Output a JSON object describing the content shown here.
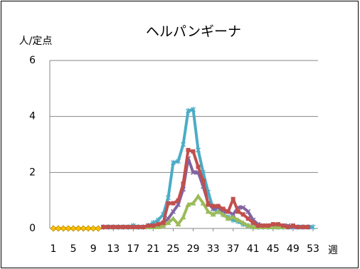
{
  "chart_data": {
    "type": "line",
    "title": "ヘルパンギーナ",
    "y_label": "人/定点",
    "x_label": "週",
    "x": [
      1,
      2,
      3,
      4,
      5,
      6,
      7,
      8,
      9,
      10,
      11,
      12,
      13,
      14,
      15,
      16,
      17,
      18,
      19,
      20,
      21,
      22,
      23,
      24,
      25,
      26,
      27,
      28,
      29,
      30,
      31,
      32,
      33,
      34,
      35,
      36,
      37,
      38,
      39,
      40,
      41,
      42,
      43,
      44,
      45,
      46,
      47,
      48,
      49,
      50,
      51,
      52,
      53
    ],
    "xlim": [
      1,
      53
    ],
    "xticks": [
      1,
      5,
      9,
      13,
      17,
      21,
      25,
      29,
      33,
      37,
      41,
      45,
      49,
      53
    ],
    "ylim": [
      0,
      6
    ],
    "yticks": [
      0,
      2,
      4,
      6
    ],
    "grid": true,
    "series": [
      {
        "color": "#4bacc6",
        "marker": "star",
        "values": [
          null,
          null,
          null,
          null,
          null,
          null,
          null,
          null,
          null,
          null,
          0.05,
          0.05,
          0.05,
          0.05,
          0.05,
          0.05,
          0.1,
          0.05,
          0.05,
          0.1,
          0.2,
          0.3,
          0.5,
          1.1,
          2.35,
          2.4,
          3.0,
          4.2,
          4.25,
          2.8,
          2.0,
          1.3,
          0.7,
          0.6,
          0.5,
          0.4,
          0.3,
          0.25,
          0.15,
          0.1,
          0.05,
          0.05,
          0.05,
          0.05,
          0.05,
          0.05,
          0.05,
          0.05,
          0.05,
          0.05,
          0.05,
          0.05,
          0.05
        ]
      },
      {
        "color": "#8064a2",
        "marker": "x",
        "values": [
          null,
          null,
          null,
          null,
          null,
          null,
          null,
          null,
          null,
          null,
          0.05,
          0.05,
          0.05,
          0.05,
          0.05,
          0.05,
          0.05,
          0.05,
          0.05,
          0.05,
          0.1,
          0.1,
          0.2,
          0.35,
          0.6,
          0.85,
          1.4,
          2.5,
          2.0,
          2.0,
          1.5,
          0.9,
          0.7,
          0.75,
          0.6,
          0.6,
          0.5,
          0.75,
          0.75,
          0.6,
          0.3,
          0.15,
          0.1,
          0.1,
          0.1,
          0.05,
          0.1,
          0.1,
          0.05,
          0.05,
          0.05,
          0.05,
          null
        ]
      },
      {
        "color": "#9bbb59",
        "marker": "triangle",
        "values": [
          null,
          null,
          null,
          null,
          null,
          null,
          null,
          null,
          null,
          null,
          0.05,
          0.05,
          0.05,
          0.05,
          0.05,
          0.05,
          0.05,
          0.05,
          0.05,
          0.05,
          0.05,
          0.05,
          0.1,
          0.2,
          0.35,
          0.15,
          0.4,
          0.85,
          0.9,
          1.15,
          0.9,
          0.6,
          0.5,
          0.6,
          0.5,
          0.35,
          0.4,
          0.3,
          0.2,
          0.1,
          0.05,
          0.05,
          0.05,
          0.05,
          0.05,
          0.05,
          0.05,
          null,
          null,
          null,
          null,
          null,
          null
        ]
      },
      {
        "color": "#c0504d",
        "marker": "square",
        "values": [
          null,
          null,
          null,
          null,
          null,
          null,
          null,
          null,
          null,
          null,
          0.05,
          0.05,
          0.05,
          0.05,
          0.05,
          0.05,
          0.05,
          0.05,
          0.05,
          0.1,
          0.1,
          0.15,
          0.2,
          0.9,
          0.9,
          1.0,
          1.6,
          2.8,
          2.75,
          2.2,
          1.7,
          0.85,
          0.8,
          0.8,
          0.7,
          0.6,
          1.05,
          0.6,
          0.5,
          0.35,
          0.2,
          0.1,
          0.1,
          0.1,
          0.15,
          0.15,
          0.1,
          0.05,
          0.1,
          0.05,
          0.05,
          0.05,
          null
        ]
      },
      {
        "color": "#ffc000",
        "marker": "diamond",
        "values": [
          0,
          0,
          0,
          0,
          0,
          0,
          0,
          0,
          0,
          0,
          null,
          null,
          null,
          null,
          null,
          null,
          null,
          null,
          null,
          null,
          null,
          null,
          null,
          null,
          null,
          null,
          null,
          null,
          null,
          null,
          null,
          null,
          null,
          null,
          null,
          null,
          null,
          null,
          null,
          null,
          null,
          null,
          null,
          null,
          null,
          null,
          null,
          null,
          null,
          null,
          null,
          null,
          null
        ]
      }
    ]
  }
}
